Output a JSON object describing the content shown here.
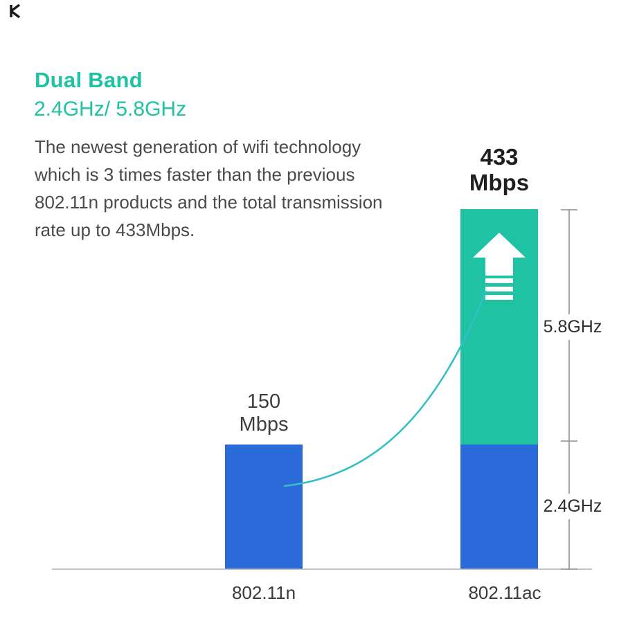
{
  "header": {
    "title": "Dual Band",
    "subtitle": "2.4GHz/ 5.8GHz",
    "description_lines": [
      "The newest generation of wifi technology",
      "which is 3 times faster than the previous",
      "802.11n products and the total transmission",
      "rate up to 433Mbps."
    ]
  },
  "colors": {
    "accent_teal": "#1FC2A2",
    "bar_blue": "#2B6BD9",
    "curve_cyan": "#34BFC4",
    "axis_gray": "#B3B3B3",
    "bracket_gray": "#8F8F8F",
    "text_dark": "#4A4A4A"
  },
  "chart_data": {
    "type": "bar",
    "title": "",
    "categories": [
      "802.11n",
      "802.11ac"
    ],
    "series": [
      {
        "name": "2.4GHz",
        "color": "#2B6BD9",
        "values": [
          150,
          150
        ]
      },
      {
        "name": "5.8GHz",
        "color": "#1FC2A2",
        "values": [
          0,
          283
        ]
      }
    ],
    "totals": [
      150,
      433
    ],
    "unit": "Mbps",
    "bar_value_labels": [
      [
        "150",
        "Mbps"
      ],
      [
        "433",
        "Mbps"
      ]
    ],
    "band_annotations": [
      "5.8GHz",
      "2.4GHz"
    ],
    "ylim": [
      0,
      433
    ],
    "grid": false,
    "legend": false,
    "annotations": [
      "white up-arrow inside 5.8GHz segment",
      "cyan growth curve from 802.11n bar to 802.11ac bar",
      "right-side bracket marking 5.8GHz and 2.4GHz bands"
    ]
  }
}
